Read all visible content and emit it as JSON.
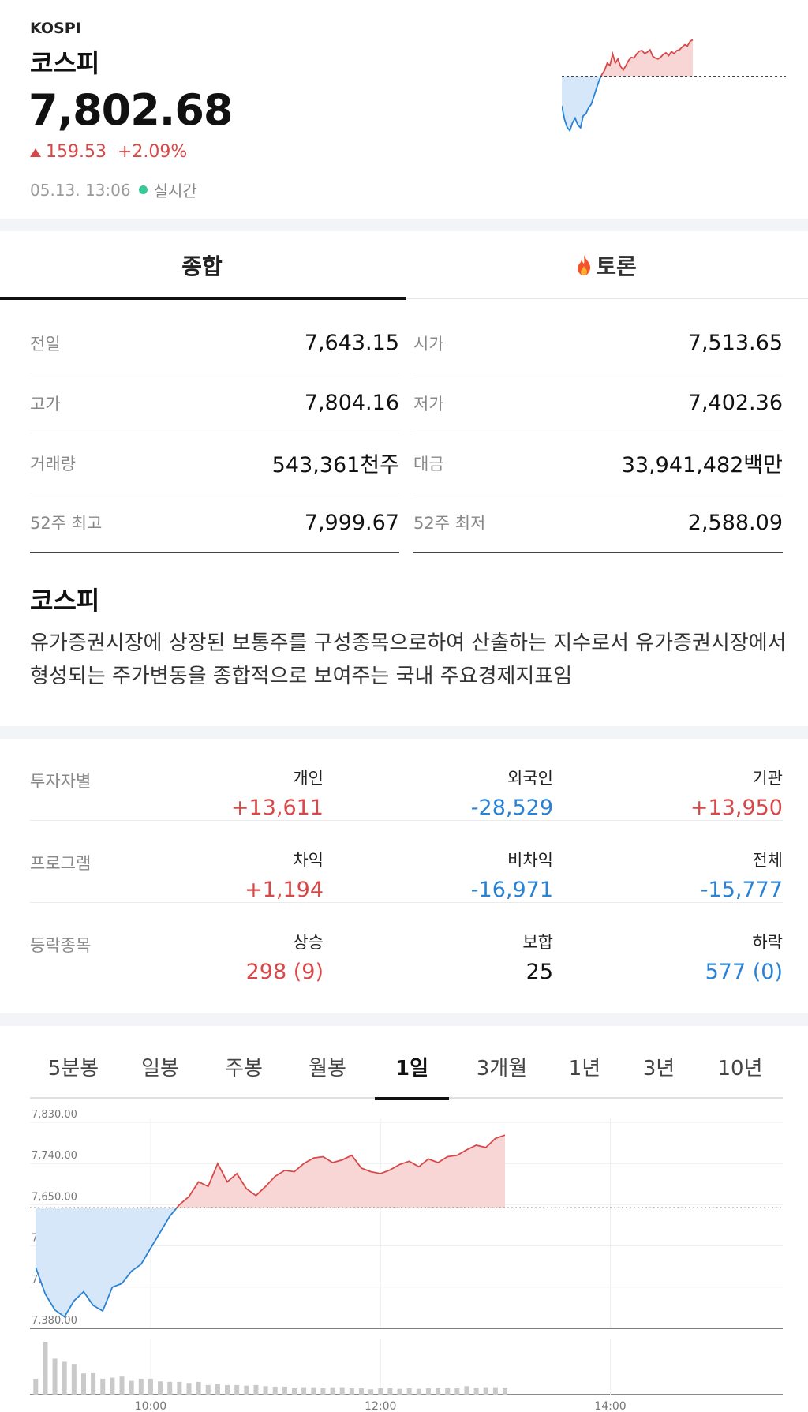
{
  "header": {
    "code": "KOSPI",
    "name": "코스피",
    "price": "7,802.68",
    "change_amount": "159.53",
    "change_percent": "+2.09%",
    "timestamp": "05.13. 13:06",
    "live_label": "실시간",
    "direction": "up"
  },
  "tabs": [
    {
      "label": "종합",
      "active": true
    },
    {
      "label": "토론",
      "icon": "fire-icon",
      "active": false
    }
  ],
  "stats": [
    {
      "left_label": "전일",
      "left_value": "7,643.15",
      "left_color": "neutral",
      "right_label": "시가",
      "right_value": "7,513.65",
      "right_color": "down"
    },
    {
      "left_label": "고가",
      "left_value": "7,804.16",
      "left_color": "up",
      "right_label": "저가",
      "right_value": "7,402.36",
      "right_color": "down"
    },
    {
      "left_label": "거래량",
      "left_value": "543,361천주",
      "left_color": "neutral",
      "right_label": "대금",
      "right_value": "33,941,482백만",
      "right_color": "neutral"
    },
    {
      "left_label": "52주 최고",
      "left_value": "7,999.67",
      "left_color": "neutral",
      "right_label": "52주 최저",
      "right_value": "2,588.09",
      "right_color": "neutral"
    }
  ],
  "description": {
    "title": "코스피",
    "text": "유가증권시장에 상장된 보통주를 구성종목으로하여 산출하는 지수로서 유가증권시장에서 형성되는 주가변동을 종합적으로 보여주는 국내 주요경제지표임"
  },
  "investors": [
    {
      "label": "투자자별",
      "cols": [
        {
          "key": "개인",
          "value": "+13,611",
          "color": "up"
        },
        {
          "key": "외국인",
          "value": "-28,529",
          "color": "down"
        },
        {
          "key": "기관",
          "value": "+13,950",
          "color": "up"
        }
      ]
    },
    {
      "label": "프로그램",
      "cols": [
        {
          "key": "차익",
          "value": "+1,194",
          "color": "up"
        },
        {
          "key": "비차익",
          "value": "-16,971",
          "color": "down"
        },
        {
          "key": "전체",
          "value": "-15,777",
          "color": "down"
        }
      ]
    },
    {
      "label": "등락종목",
      "cols": [
        {
          "key": "상승",
          "value": "298 (9)",
          "color": "up"
        },
        {
          "key": "보합",
          "value": "25",
          "color": "neutral"
        },
        {
          "key": "하락",
          "value": "577 (0)",
          "color": "down"
        }
      ]
    }
  ],
  "period_tabs": [
    {
      "label": "5분봉",
      "active": false
    },
    {
      "label": "일봉",
      "active": false
    },
    {
      "label": "주봉",
      "active": false
    },
    {
      "label": "월봉",
      "active": false
    },
    {
      "label": "1일",
      "active": true
    },
    {
      "label": "3개월",
      "active": false
    },
    {
      "label": "1년",
      "active": false
    },
    {
      "label": "3년",
      "active": false
    },
    {
      "label": "10년",
      "active": false
    }
  ],
  "colors": {
    "up": "#d94848",
    "down": "#2a82d4",
    "up_fill": "#f9d6d6",
    "down_fill": "#d6e7f9",
    "live": "#36c99a"
  },
  "chart_data": {
    "type": "area",
    "title": "",
    "xlabel": "",
    "ylabel": "",
    "baseline": 7643.15,
    "ylim": [
      7380,
      7830
    ],
    "y_ticks": [
      "7,830.00",
      "7,740.00",
      "7,650.00",
      "7,560.00",
      "7,470.00",
      "7,380.00"
    ],
    "y_tick_values": [
      7830,
      7740,
      7650,
      7560,
      7470,
      7380
    ],
    "x_ticks": [
      "10:00",
      "12:00",
      "14:00"
    ],
    "x_range": [
      "08:57",
      "15:30"
    ],
    "grid": true,
    "series": [
      {
        "x": [
          "09:00",
          "09:05",
          "09:10",
          "09:15",
          "09:20",
          "09:25",
          "09:30",
          "09:35",
          "09:40",
          "09:45",
          "09:50",
          "09:55",
          "10:00",
          "10:05",
          "10:10",
          "10:15",
          "10:20",
          "10:25",
          "10:30",
          "10:35",
          "10:40",
          "10:45",
          "10:50",
          "10:55",
          "11:00",
          "11:05",
          "11:10",
          "11:15",
          "11:20",
          "11:25",
          "11:30",
          "11:35",
          "11:40",
          "11:45",
          "11:50",
          "11:55",
          "12:00",
          "12:05",
          "12:10",
          "12:15",
          "12:20",
          "12:25",
          "12:30",
          "12:35",
          "12:40",
          "12:45",
          "12:50",
          "12:55",
          "13:00",
          "13:05"
        ],
        "values": [
          7513,
          7455,
          7420,
          7405,
          7440,
          7460,
          7430,
          7418,
          7470,
          7478,
          7505,
          7520,
          7555,
          7590,
          7625,
          7650,
          7668,
          7700,
          7690,
          7740,
          7700,
          7718,
          7685,
          7670,
          7690,
          7712,
          7725,
          7722,
          7740,
          7752,
          7755,
          7742,
          7748,
          7758,
          7730,
          7722,
          7718,
          7726,
          7738,
          7745,
          7733,
          7750,
          7742,
          7755,
          7758,
          7770,
          7780,
          7775,
          7795,
          7802
        ]
      }
    ],
    "volume": {
      "x": [
        "09:00",
        "09:05",
        "09:10",
        "09:15",
        "09:20",
        "09:25",
        "09:30",
        "09:35",
        "09:40",
        "09:45",
        "09:50",
        "09:55",
        "10:00",
        "10:05",
        "10:10",
        "10:15",
        "10:20",
        "10:25",
        "10:30",
        "10:35",
        "10:40",
        "10:45",
        "10:50",
        "10:55",
        "11:00",
        "11:05",
        "11:10",
        "11:15",
        "11:20",
        "11:25",
        "11:30",
        "11:35",
        "11:40",
        "11:45",
        "11:50",
        "11:55",
        "12:00",
        "12:05",
        "12:10",
        "12:15",
        "12:20",
        "12:25",
        "12:30",
        "12:35",
        "12:40",
        "12:45",
        "12:50",
        "12:55",
        "13:00",
        "13:05"
      ],
      "values": [
        30,
        100,
        68,
        62,
        58,
        40,
        42,
        30,
        32,
        34,
        26,
        30,
        30,
        25,
        24,
        24,
        22,
        24,
        18,
        20,
        18,
        18,
        17,
        18,
        16,
        15,
        15,
        13,
        14,
        14,
        12,
        14,
        14,
        12,
        12,
        10,
        12,
        12,
        11,
        12,
        11,
        12,
        13,
        13,
        12,
        16,
        13,
        14,
        14,
        13
      ]
    }
  },
  "mini_chart": {
    "values": [
      7513,
      7455,
      7420,
      7405,
      7440,
      7460,
      7430,
      7418,
      7470,
      7478,
      7505,
      7520,
      7555,
      7590,
      7625,
      7650,
      7668,
      7700,
      7690,
      7740,
      7700,
      7718,
      7685,
      7670,
      7690,
      7712,
      7725,
      7722,
      7740,
      7752,
      7755,
      7742,
      7748,
      7758,
      7730,
      7722,
      7718,
      7726,
      7738,
      7745,
      7733,
      7750,
      7742,
      7755,
      7758,
      7770,
      7780,
      7775,
      7795,
      7802
    ]
  }
}
